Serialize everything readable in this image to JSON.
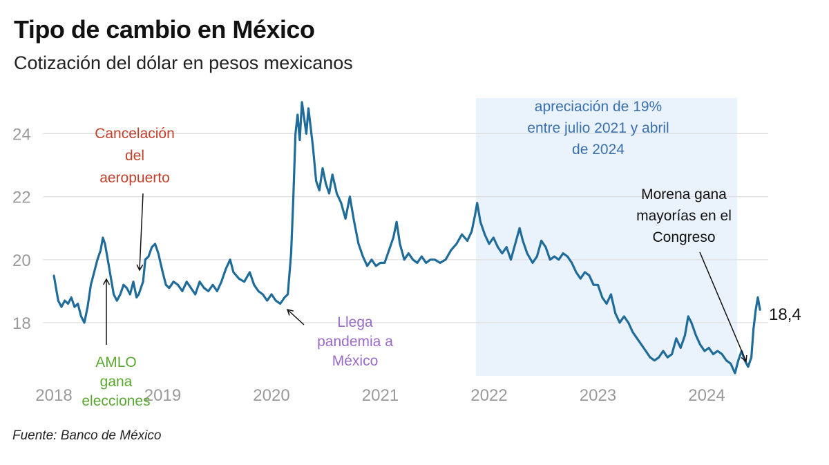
{
  "title": "Tipo de cambio en México",
  "subtitle": "Cotización del dólar en pesos mexicanos",
  "source": "Fuente: Banco de México",
  "colors": {
    "line": "#1f6b99",
    "shade": "#eaf2fb",
    "grid": "#dedede",
    "axis_text": "#9a9a9a",
    "annotation_red": "#c0412b",
    "annotation_green": "#5aa832",
    "annotation_purple": "#9a6ac7",
    "annotation_blue": "#3a6fae",
    "annotation_black": "#111111"
  },
  "chart_data": {
    "type": "line",
    "title": "Tipo de cambio en México",
    "subtitle": "Cotización del dólar en pesos mexicanos",
    "xlabel": "",
    "ylabel": "",
    "x_ticks": [
      "2018",
      "2019",
      "2020",
      "2021",
      "2022",
      "2023",
      "2024"
    ],
    "y_ticks": [
      "18",
      "20",
      "22",
      "24"
    ],
    "xlim": [
      2018.0,
      2024.65
    ],
    "ylim": [
      16.2,
      25.2
    ],
    "grid": "horizontal",
    "shaded_region": {
      "x_start": 2021.88,
      "x_end": 2024.28
    },
    "end_label": "18,4",
    "series": [
      {
        "values": [
          [
            2018.0,
            19.5
          ],
          [
            2018.02,
            19.1
          ],
          [
            2018.04,
            18.7
          ],
          [
            2018.07,
            18.5
          ],
          [
            2018.1,
            18.7
          ],
          [
            2018.13,
            18.6
          ],
          [
            2018.16,
            18.8
          ],
          [
            2018.19,
            18.5
          ],
          [
            2018.22,
            18.6
          ],
          [
            2018.25,
            18.2
          ],
          [
            2018.28,
            18.0
          ],
          [
            2018.31,
            18.5
          ],
          [
            2018.34,
            19.2
          ],
          [
            2018.37,
            19.6
          ],
          [
            2018.4,
            20.0
          ],
          [
            2018.43,
            20.3
          ],
          [
            2018.45,
            20.7
          ],
          [
            2018.47,
            20.5
          ],
          [
            2018.5,
            19.9
          ],
          [
            2018.52,
            19.5
          ],
          [
            2018.55,
            18.9
          ],
          [
            2018.58,
            18.7
          ],
          [
            2018.61,
            18.9
          ],
          [
            2018.64,
            19.2
          ],
          [
            2018.67,
            19.1
          ],
          [
            2018.7,
            18.9
          ],
          [
            2018.73,
            19.3
          ],
          [
            2018.76,
            18.8
          ],
          [
            2018.78,
            18.9
          ],
          [
            2018.82,
            19.3
          ],
          [
            2018.84,
            20.0
          ],
          [
            2018.87,
            20.1
          ],
          [
            2018.9,
            20.4
          ],
          [
            2018.93,
            20.5
          ],
          [
            2018.96,
            20.2
          ],
          [
            2019.0,
            19.6
          ],
          [
            2019.03,
            19.2
          ],
          [
            2019.06,
            19.1
          ],
          [
            2019.1,
            19.3
          ],
          [
            2019.14,
            19.2
          ],
          [
            2019.18,
            19.0
          ],
          [
            2019.22,
            19.3
          ],
          [
            2019.26,
            19.1
          ],
          [
            2019.3,
            18.9
          ],
          [
            2019.34,
            19.3
          ],
          [
            2019.38,
            19.1
          ],
          [
            2019.42,
            19.0
          ],
          [
            2019.46,
            19.2
          ],
          [
            2019.5,
            19.0
          ],
          [
            2019.54,
            19.3
          ],
          [
            2019.58,
            19.7
          ],
          [
            2019.62,
            20.0
          ],
          [
            2019.65,
            19.6
          ],
          [
            2019.7,
            19.4
          ],
          [
            2019.75,
            19.3
          ],
          [
            2019.8,
            19.6
          ],
          [
            2019.84,
            19.2
          ],
          [
            2019.88,
            19.0
          ],
          [
            2019.92,
            18.9
          ],
          [
            2019.96,
            18.7
          ],
          [
            2020.0,
            18.9
          ],
          [
            2020.04,
            18.7
          ],
          [
            2020.08,
            18.6
          ],
          [
            2020.12,
            18.8
          ],
          [
            2020.15,
            18.9
          ],
          [
            2020.18,
            20.2
          ],
          [
            2020.2,
            21.9
          ],
          [
            2020.22,
            24.0
          ],
          [
            2020.24,
            24.6
          ],
          [
            2020.26,
            23.8
          ],
          [
            2020.28,
            25.0
          ],
          [
            2020.3,
            24.5
          ],
          [
            2020.32,
            24.0
          ],
          [
            2020.34,
            24.8
          ],
          [
            2020.36,
            24.2
          ],
          [
            2020.38,
            23.6
          ],
          [
            2020.41,
            22.5
          ],
          [
            2020.44,
            22.2
          ],
          [
            2020.47,
            22.9
          ],
          [
            2020.5,
            22.4
          ],
          [
            2020.53,
            22.1
          ],
          [
            2020.56,
            22.7
          ],
          [
            2020.6,
            22.1
          ],
          [
            2020.64,
            21.8
          ],
          [
            2020.68,
            21.3
          ],
          [
            2020.72,
            22.0
          ],
          [
            2020.76,
            21.2
          ],
          [
            2020.8,
            20.5
          ],
          [
            2020.84,
            20.1
          ],
          [
            2020.88,
            19.8
          ],
          [
            2020.92,
            20.0
          ],
          [
            2020.96,
            19.8
          ],
          [
            2021.0,
            19.9
          ],
          [
            2021.04,
            19.9
          ],
          [
            2021.08,
            20.3
          ],
          [
            2021.12,
            20.7
          ],
          [
            2021.15,
            21.2
          ],
          [
            2021.18,
            20.5
          ],
          [
            2021.22,
            20.0
          ],
          [
            2021.26,
            20.2
          ],
          [
            2021.3,
            20.0
          ],
          [
            2021.34,
            19.9
          ],
          [
            2021.38,
            20.1
          ],
          [
            2021.42,
            19.9
          ],
          [
            2021.46,
            20.0
          ],
          [
            2021.5,
            20.0
          ],
          [
            2021.55,
            19.9
          ],
          [
            2021.6,
            20.0
          ],
          [
            2021.65,
            20.3
          ],
          [
            2021.7,
            20.5
          ],
          [
            2021.75,
            20.8
          ],
          [
            2021.8,
            20.6
          ],
          [
            2021.84,
            20.9
          ],
          [
            2021.87,
            21.4
          ],
          [
            2021.89,
            21.8
          ],
          [
            2021.92,
            21.2
          ],
          [
            2021.96,
            20.8
          ],
          [
            2022.0,
            20.5
          ],
          [
            2022.04,
            20.7
          ],
          [
            2022.08,
            20.4
          ],
          [
            2022.12,
            20.2
          ],
          [
            2022.16,
            20.4
          ],
          [
            2022.2,
            20.0
          ],
          [
            2022.24,
            20.5
          ],
          [
            2022.28,
            21.0
          ],
          [
            2022.31,
            20.6
          ],
          [
            2022.35,
            20.2
          ],
          [
            2022.4,
            19.9
          ],
          [
            2022.44,
            20.1
          ],
          [
            2022.48,
            20.6
          ],
          [
            2022.52,
            20.4
          ],
          [
            2022.56,
            20.0
          ],
          [
            2022.6,
            20.1
          ],
          [
            2022.64,
            20.0
          ],
          [
            2022.68,
            20.2
          ],
          [
            2022.72,
            20.1
          ],
          [
            2022.76,
            19.9
          ],
          [
            2022.8,
            19.6
          ],
          [
            2022.84,
            19.4
          ],
          [
            2022.88,
            19.6
          ],
          [
            2022.92,
            19.5
          ],
          [
            2022.96,
            19.2
          ],
          [
            2023.0,
            19.2
          ],
          [
            2023.04,
            18.8
          ],
          [
            2023.08,
            18.6
          ],
          [
            2023.12,
            18.9
          ],
          [
            2023.16,
            18.3
          ],
          [
            2023.2,
            18.0
          ],
          [
            2023.24,
            18.2
          ],
          [
            2023.28,
            18.0
          ],
          [
            2023.32,
            17.7
          ],
          [
            2023.36,
            17.5
          ],
          [
            2023.4,
            17.3
          ],
          [
            2023.44,
            17.1
          ],
          [
            2023.48,
            16.9
          ],
          [
            2023.52,
            16.8
          ],
          [
            2023.56,
            16.9
          ],
          [
            2023.6,
            17.1
          ],
          [
            2023.64,
            16.9
          ],
          [
            2023.68,
            17.0
          ],
          [
            2023.72,
            17.5
          ],
          [
            2023.76,
            17.2
          ],
          [
            2023.8,
            17.6
          ],
          [
            2023.83,
            18.2
          ],
          [
            2023.86,
            18.0
          ],
          [
            2023.9,
            17.6
          ],
          [
            2023.94,
            17.3
          ],
          [
            2023.98,
            17.1
          ],
          [
            2024.02,
            17.2
          ],
          [
            2024.06,
            17.0
          ],
          [
            2024.1,
            17.1
          ],
          [
            2024.14,
            17.0
          ],
          [
            2024.18,
            16.8
          ],
          [
            2024.22,
            16.7
          ],
          [
            2024.26,
            16.4
          ],
          [
            2024.29,
            16.8
          ],
          [
            2024.32,
            17.1
          ],
          [
            2024.35,
            16.8
          ],
          [
            2024.38,
            16.6
          ],
          [
            2024.41,
            16.9
          ],
          [
            2024.43,
            17.8
          ],
          [
            2024.45,
            18.4
          ],
          [
            2024.47,
            18.8
          ],
          [
            2024.49,
            18.4
          ]
        ]
      }
    ],
    "annotations": [
      {
        "text": "Cancelación\ndel\naeropuerto",
        "color_key": "annotation_red"
      },
      {
        "text": "AMLO\ngana\nelecciones",
        "color_key": "annotation_green"
      },
      {
        "text": "Llega\npandemia a\nMéxico",
        "color_key": "annotation_purple"
      },
      {
        "text": "apreciación de 19%\nentre julio 2021 y abril\nde 2024",
        "color_key": "annotation_blue"
      },
      {
        "text": "Morena gana\nmayorías en el\nCongreso",
        "color_key": "annotation_black"
      }
    ]
  }
}
